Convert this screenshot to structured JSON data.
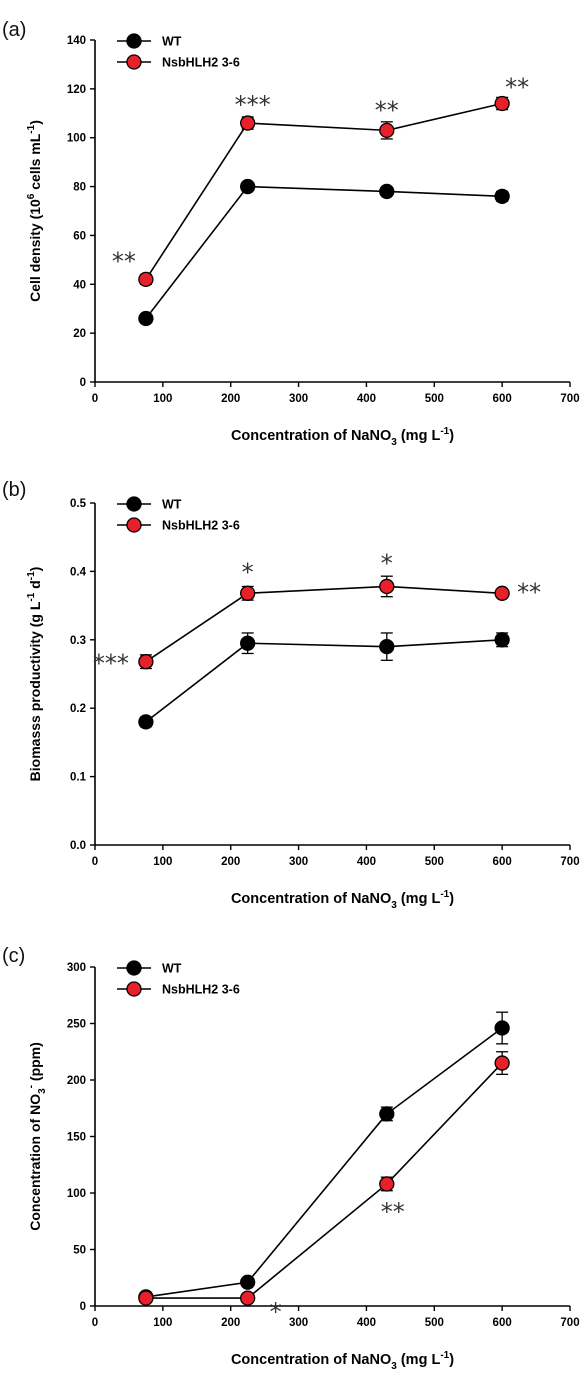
{
  "chart_data": [
    {
      "type": "line",
      "panel_label": "(a)",
      "xlabel": "Concentration of NaNO",
      "xlabel_sub": "3",
      "xlabel_suffix": " (mg L",
      "xlabel_sup": "-1",
      "xlabel_end": ")",
      "ylabel": "Cell density (10",
      "ylabel_sup1": "6",
      "ylabel_mid": " cells mL",
      "ylabel_sup2": "-1",
      "ylabel_end": ")",
      "xlim": [
        0,
        700
      ],
      "ylim": [
        0,
        140
      ],
      "xticks": [
        "0",
        "100",
        "200",
        "300",
        "400",
        "500",
        "600",
        "700"
      ],
      "yticks": [
        "0",
        "20",
        "40",
        "60",
        "80",
        "100",
        "120",
        "140"
      ],
      "x": [
        75,
        225,
        430,
        600
      ],
      "legend_position": "top-left",
      "series": [
        {
          "name": "WT",
          "color": "#000000",
          "values": [
            26,
            80,
            78,
            76
          ],
          "errors": [
            1,
            1.5,
            1.5,
            2
          ]
        },
        {
          "name": "NsbHLH2 3-6",
          "color": "#e8202a",
          "values": [
            42,
            106,
            103,
            114
          ],
          "errors": [
            2,
            2.5,
            3.5,
            2.5
          ]
        }
      ],
      "annotations": [
        {
          "x": 75,
          "y": 42,
          "text": "**"
        },
        {
          "x": 225,
          "y": 106,
          "text": "***"
        },
        {
          "x": 430,
          "y": 103,
          "text": "**"
        },
        {
          "x": 600,
          "y": 114,
          "text": "**"
        }
      ]
    },
    {
      "type": "line",
      "panel_label": "(b)",
      "xlabel": "Concentration of NaNO",
      "xlabel_sub": "3",
      "xlabel_suffix": " (mg L",
      "xlabel_sup": "-1",
      "xlabel_end": ")",
      "ylabel": "Biomasss productivity (g L",
      "ylabel_sup1": "-1",
      "ylabel_mid": " d",
      "ylabel_sup2": "-1",
      "ylabel_end": ")",
      "xlim": [
        0,
        700
      ],
      "ylim": [
        0,
        0.5
      ],
      "xticks": [
        "0",
        "100",
        "200",
        "300",
        "400",
        "500",
        "600",
        "700"
      ],
      "yticks": [
        "0.0",
        "0.1",
        "0.2",
        "0.3",
        "0.4",
        "0.5"
      ],
      "x": [
        75,
        225,
        430,
        600
      ],
      "legend_position": "top-left",
      "series": [
        {
          "name": "WT",
          "color": "#000000",
          "values": [
            0.18,
            0.295,
            0.29,
            0.3
          ],
          "errors": [
            0.007,
            0.015,
            0.02,
            0.01
          ]
        },
        {
          "name": "NsbHLH2 3-6",
          "color": "#e8202a",
          "values": [
            0.268,
            0.368,
            0.378,
            0.368
          ],
          "errors": [
            0.01,
            0.01,
            0.015,
            0.005
          ]
        }
      ],
      "annotations": [
        {
          "x": 75,
          "y": 0.268,
          "text": "***"
        },
        {
          "x": 225,
          "y": 0.368,
          "text": "*"
        },
        {
          "x": 430,
          "y": 0.378,
          "text": "*"
        },
        {
          "x": 600,
          "y": 0.368,
          "text": "**"
        }
      ]
    },
    {
      "type": "line",
      "panel_label": "(c)",
      "xlabel": "Concentration of NaNO",
      "xlabel_sub": "3",
      "xlabel_suffix": " (mg L",
      "xlabel_sup": "-1",
      "xlabel_end": ")",
      "ylabel": "Concentration of NO",
      "ylabel_sub1": "3",
      "ylabel_sup1": "-",
      "ylabel_mid": " (ppm)",
      "ylabel_sup2": "",
      "ylabel_end": "",
      "xlim": [
        0,
        700
      ],
      "ylim": [
        0,
        300
      ],
      "xticks": [
        "0",
        "100",
        "200",
        "300",
        "400",
        "500",
        "600",
        "700"
      ],
      "yticks": [
        "0",
        "50",
        "100",
        "150",
        "200",
        "250",
        "300"
      ],
      "x": [
        75,
        225,
        430,
        600
      ],
      "legend_position": "top-left",
      "series": [
        {
          "name": "WT",
          "color": "#000000",
          "values": [
            8,
            21,
            170,
            246
          ],
          "errors": [
            1,
            3,
            6,
            14
          ]
        },
        {
          "name": "NsbHLH2 3-6",
          "color": "#e8202a",
          "values": [
            7,
            7,
            108,
            215
          ],
          "errors": [
            1,
            1,
            6,
            10
          ]
        }
      ],
      "annotations": [
        {
          "x": 225,
          "y": 7,
          "text": "*"
        },
        {
          "x": 430,
          "y": 108,
          "text": "**"
        }
      ]
    }
  ]
}
